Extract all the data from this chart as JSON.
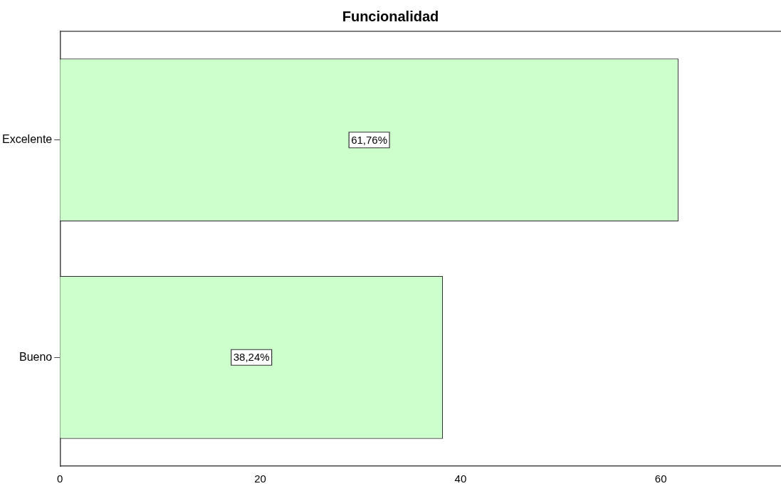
{
  "chart_data": {
    "type": "bar",
    "orientation": "horizontal",
    "title": "Funcionalidad",
    "categories": [
      "Excelente",
      "Bueno"
    ],
    "values": [
      61.76,
      38.24
    ],
    "value_labels": [
      "61,76%",
      "38,24%"
    ],
    "color": "#ccffcc",
    "xlim": [
      0,
      72
    ],
    "xticks": [
      0,
      20,
      40,
      60
    ],
    "grid": false,
    "legend": false
  }
}
